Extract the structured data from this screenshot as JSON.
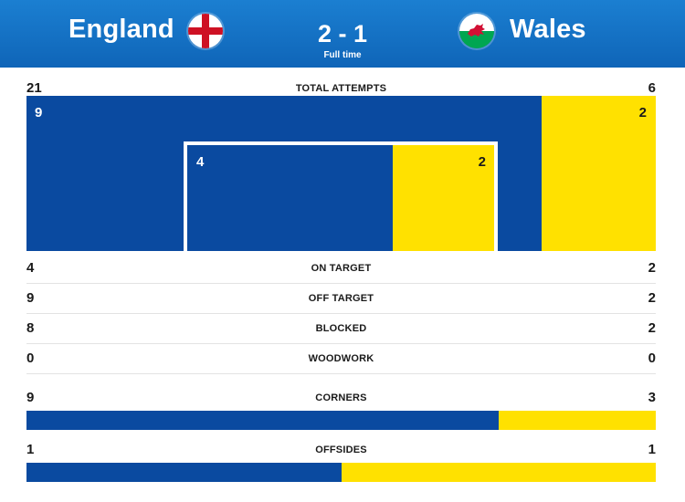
{
  "match": {
    "home_team": "England",
    "away_team": "Wales",
    "score": "2 - 1",
    "status": "Full time",
    "home_flag": "england-flag",
    "away_flag": "wales-flag"
  },
  "colors": {
    "home": "#0a4aa0",
    "away": "#ffe100",
    "header": "#1575c6"
  },
  "stats": {
    "total_attempts": {
      "label": "TOTAL ATTEMPTS",
      "home": "21",
      "away": "6"
    },
    "attempts_breakdown": {
      "outside_goal_home": "9",
      "outside_goal_away": "2",
      "inside_goal_home": "4",
      "inside_goal_away": "2"
    },
    "on_target": {
      "label": "ON TARGET",
      "home": "4",
      "away": "2"
    },
    "off_target": {
      "label": "OFF TARGET",
      "home": "9",
      "away": "2"
    },
    "blocked": {
      "label": "BLOCKED",
      "home": "8",
      "away": "2"
    },
    "woodwork": {
      "label": "WOODWORK",
      "home": "0",
      "away": "0"
    },
    "corners": {
      "label": "CORNERS",
      "home": "9",
      "away": "3"
    },
    "offsides": {
      "label": "OFFSIDES",
      "home": "1",
      "away": "1"
    }
  }
}
